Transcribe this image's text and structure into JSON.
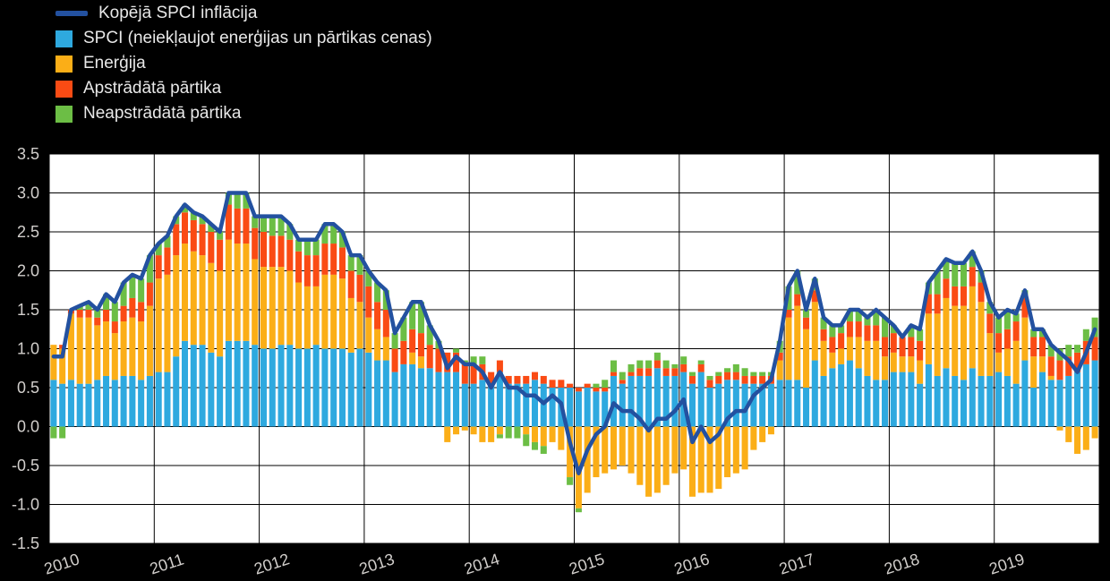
{
  "page": {
    "background": "#000000"
  },
  "chart_data": {
    "type": "bar",
    "subtype": "stacked-bar-with-line-overlay",
    "title": "",
    "xlabel": "",
    "ylabel": "",
    "grid": true,
    "legend_position": "top-left",
    "plot_bg": "#FFFFFF",
    "grid_color": "#000000",
    "axis_text_color": "#D2CFCC",
    "ylim": [
      -1.5,
      3.5
    ],
    "ytick_step": 0.5,
    "yticks": [
      "3.5",
      "3.0",
      "2.5",
      "2.0",
      "1.5",
      "1.0",
      "0.5",
      "0.0",
      "-0.5",
      "-1.0",
      "-1.5"
    ],
    "years": [
      "2010",
      "2011",
      "2012",
      "2013",
      "2014",
      "2015",
      "2016",
      "2017",
      "2018",
      "2019"
    ],
    "x_unit": "month",
    "series": [
      {
        "id": "core",
        "name": "SPCI (neiekļaujot enerģijas un pārtikas cenas)",
        "color": "#2EA9DF",
        "values": [
          0.6,
          0.55,
          0.6,
          0.55,
          0.55,
          0.6,
          0.65,
          0.6,
          0.65,
          0.65,
          0.6,
          0.65,
          0.7,
          0.7,
          0.9,
          1.1,
          1.05,
          1.05,
          0.95,
          0.9,
          1.1,
          1.1,
          1.1,
          1.05,
          1.0,
          1.0,
          1.05,
          1.05,
          1.0,
          1.0,
          1.05,
          1.0,
          1.0,
          1.0,
          0.95,
          1.0,
          0.95,
          0.85,
          0.85,
          0.7,
          0.8,
          0.8,
          0.75,
          0.75,
          0.7,
          0.7,
          0.7,
          0.55,
          0.55,
          0.6,
          0.55,
          0.7,
          0.55,
          0.55,
          0.55,
          0.6,
          0.55,
          0.5,
          0.5,
          0.5,
          0.45,
          0.5,
          0.45,
          0.45,
          0.65,
          0.55,
          0.65,
          0.65,
          0.65,
          0.75,
          0.65,
          0.65,
          0.7,
          0.55,
          0.7,
          0.5,
          0.55,
          0.6,
          0.6,
          0.55,
          0.55,
          0.55,
          0.55,
          0.6,
          0.6,
          0.6,
          0.5,
          0.85,
          0.65,
          0.75,
          0.8,
          0.85,
          0.75,
          0.65,
          0.6,
          0.6,
          0.7,
          0.7,
          0.7,
          0.55,
          0.8,
          0.65,
          0.75,
          0.65,
          0.6,
          0.75,
          0.65,
          0.65,
          0.7,
          0.65,
          0.55,
          0.85,
          0.5,
          0.7,
          0.6,
          0.6,
          0.65,
          0.7,
          0.8,
          0.85
        ]
      },
      {
        "id": "energy",
        "name": "Enerģija",
        "color": "#FBAE17",
        "values": [
          0.45,
          0.45,
          0.85,
          0.85,
          0.85,
          0.7,
          0.7,
          0.6,
          0.7,
          0.75,
          0.75,
          0.9,
          1.2,
          1.25,
          1.3,
          1.25,
          1.2,
          1.15,
          1.15,
          1.1,
          1.3,
          1.25,
          1.25,
          1.1,
          1.05,
          1.05,
          1.0,
          0.95,
          0.85,
          0.8,
          0.75,
          0.95,
          0.95,
          0.9,
          0.7,
          0.6,
          0.45,
          0.4,
          0.3,
          0.0,
          0.0,
          0.15,
          0.15,
          0.0,
          0.0,
          -0.2,
          -0.1,
          -0.05,
          -0.1,
          -0.2,
          -0.2,
          -0.1,
          0.0,
          0.0,
          -0.1,
          -0.2,
          -0.25,
          -0.2,
          -0.3,
          -0.65,
          -1.05,
          -0.85,
          -0.65,
          -0.6,
          -0.55,
          -0.5,
          -0.6,
          -0.75,
          -0.9,
          -0.85,
          -0.75,
          -0.6,
          -0.55,
          -0.9,
          -0.85,
          -0.85,
          -0.8,
          -0.65,
          -0.6,
          -0.55,
          -0.3,
          -0.2,
          -0.1,
          0.25,
          0.8,
          0.95,
          0.75,
          0.75,
          0.45,
          0.2,
          0.2,
          0.3,
          0.4,
          0.45,
          0.5,
          0.3,
          0.25,
          0.2,
          0.2,
          0.3,
          0.65,
          0.8,
          0.9,
          0.9,
          0.95,
          1.05,
          0.95,
          0.55,
          0.25,
          0.35,
          0.55,
          0.55,
          0.4,
          0.2,
          0.05,
          -0.05,
          -0.2,
          -0.35,
          -0.3,
          -0.15
        ]
      },
      {
        "id": "processed-food",
        "name": "Apstrādātā pārtika",
        "color": "#FA4B14",
        "values": [
          0.0,
          0.05,
          0.05,
          0.1,
          0.1,
          0.1,
          0.15,
          0.15,
          0.2,
          0.25,
          0.25,
          0.3,
          0.3,
          0.35,
          0.4,
          0.4,
          0.4,
          0.4,
          0.4,
          0.4,
          0.45,
          0.45,
          0.45,
          0.4,
          0.45,
          0.4,
          0.4,
          0.4,
          0.4,
          0.4,
          0.4,
          0.4,
          0.4,
          0.4,
          0.35,
          0.35,
          0.4,
          0.35,
          0.35,
          0.3,
          0.3,
          0.3,
          0.3,
          0.3,
          0.3,
          0.25,
          0.25,
          0.25,
          0.25,
          0.2,
          0.15,
          0.15,
          0.1,
          0.1,
          0.1,
          0.1,
          0.1,
          0.1,
          0.1,
          0.05,
          0.05,
          0.05,
          0.05,
          0.05,
          0.05,
          0.05,
          0.05,
          0.1,
          0.1,
          0.1,
          0.1,
          0.1,
          0.1,
          0.1,
          0.1,
          0.1,
          0.1,
          0.1,
          0.1,
          0.1,
          0.1,
          0.1,
          0.1,
          0.1,
          0.1,
          0.15,
          0.15,
          0.15,
          0.15,
          0.2,
          0.2,
          0.2,
          0.2,
          0.2,
          0.2,
          0.25,
          0.25,
          0.25,
          0.25,
          0.25,
          0.25,
          0.25,
          0.25,
          0.25,
          0.25,
          0.25,
          0.25,
          0.25,
          0.25,
          0.25,
          0.25,
          0.25,
          0.25,
          0.25,
          0.25,
          0.25,
          0.25,
          0.25,
          0.3,
          0.3
        ]
      },
      {
        "id": "unprocessed-food",
        "name": "Neapstrādātā pārtika",
        "color": "#6CBE45",
        "values": [
          -0.15,
          -0.15,
          0.0,
          0.05,
          0.1,
          0.1,
          0.2,
          0.25,
          0.3,
          0.3,
          0.3,
          0.35,
          0.15,
          0.15,
          0.1,
          0.1,
          0.1,
          0.1,
          0.1,
          0.1,
          0.15,
          0.2,
          0.2,
          0.15,
          0.2,
          0.25,
          0.25,
          0.2,
          0.15,
          0.2,
          0.2,
          0.25,
          0.25,
          0.2,
          0.2,
          0.25,
          0.2,
          0.25,
          0.25,
          0.2,
          0.3,
          0.35,
          0.4,
          0.25,
          0.1,
          0.0,
          0.05,
          0.05,
          0.1,
          0.1,
          0.0,
          -0.05,
          -0.15,
          -0.15,
          -0.15,
          -0.1,
          -0.1,
          0.0,
          0.0,
          -0.1,
          -0.05,
          0.0,
          0.05,
          0.1,
          0.15,
          0.1,
          0.1,
          0.1,
          0.1,
          0.1,
          0.1,
          0.05,
          0.1,
          0.05,
          0.05,
          0.05,
          0.05,
          0.05,
          0.1,
          0.1,
          0.05,
          0.05,
          0.05,
          0.15,
          0.3,
          0.3,
          0.1,
          0.15,
          0.15,
          0.15,
          0.1,
          0.15,
          0.15,
          0.1,
          0.2,
          0.25,
          0.1,
          0.0,
          0.15,
          0.15,
          0.15,
          0.3,
          0.25,
          0.3,
          0.3,
          0.2,
          0.15,
          0.15,
          0.2,
          0.25,
          0.1,
          0.1,
          0.1,
          0.1,
          0.15,
          0.15,
          0.15,
          0.1,
          0.15,
          0.25
        ]
      }
    ],
    "line": {
      "id": "headline",
      "name": "Kopējā SPCI inflācija",
      "color": "#2351A0",
      "values": [
        0.9,
        0.9,
        1.5,
        1.55,
        1.6,
        1.5,
        1.7,
        1.6,
        1.85,
        1.95,
        1.9,
        2.2,
        2.35,
        2.45,
        2.7,
        2.85,
        2.75,
        2.7,
        2.6,
        2.5,
        3.0,
        3.0,
        3.0,
        2.7,
        2.7,
        2.7,
        2.7,
        2.6,
        2.4,
        2.4,
        2.4,
        2.6,
        2.6,
        2.5,
        2.2,
        2.2,
        2.0,
        1.85,
        1.75,
        1.2,
        1.4,
        1.6,
        1.6,
        1.3,
        1.1,
        0.75,
        0.9,
        0.8,
        0.8,
        0.7,
        0.5,
        0.7,
        0.5,
        0.5,
        0.4,
        0.4,
        0.3,
        0.4,
        0.3,
        -0.2,
        -0.6,
        -0.3,
        -0.1,
        0.0,
        0.3,
        0.2,
        0.2,
        0.1,
        -0.05,
        0.1,
        0.1,
        0.2,
        0.35,
        -0.2,
        0.0,
        -0.2,
        -0.1,
        0.1,
        0.2,
        0.2,
        0.4,
        0.5,
        0.6,
        1.1,
        1.8,
        2.0,
        1.5,
        1.9,
        1.4,
        1.3,
        1.3,
        1.5,
        1.5,
        1.4,
        1.5,
        1.4,
        1.3,
        1.15,
        1.3,
        1.25,
        1.85,
        2.0,
        2.15,
        2.1,
        2.1,
        2.25,
        2.0,
        1.6,
        1.4,
        1.5,
        1.45,
        1.75,
        1.25,
        1.25,
        1.05,
        0.95,
        0.85,
        0.7,
        0.95,
        1.25
      ]
    }
  }
}
